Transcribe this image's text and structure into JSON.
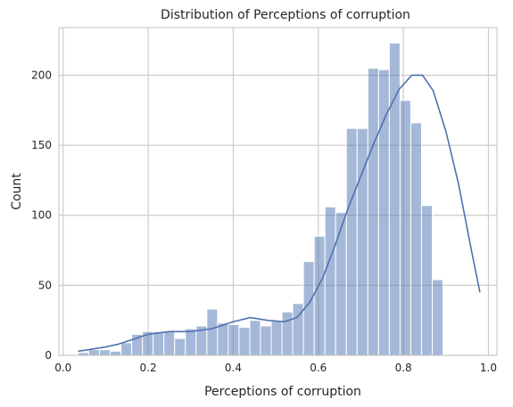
{
  "chart_data": {
    "type": "bar",
    "title": "Distribution of Perceptions of corruption",
    "xlabel": "Perceptions of corruption",
    "ylabel": "Count",
    "xlim": [
      -0.01,
      1.02
    ],
    "ylim": [
      0,
      234
    ],
    "grid": true,
    "xticks": [
      "0.0",
      "0.2",
      "0.4",
      "0.6",
      "0.8",
      "1.0"
    ],
    "yticks": [
      "0",
      "50",
      "100",
      "150",
      "200"
    ],
    "bin_start": 0.035,
    "bin_width": 0.02524,
    "counts": [
      2,
      4,
      4,
      3,
      9,
      15,
      17,
      17,
      17,
      12,
      19,
      21,
      33,
      23,
      22,
      20,
      25,
      21,
      25,
      31,
      37,
      67,
      85,
      106,
      102,
      162,
      162,
      205,
      204,
      223,
      182,
      166,
      107,
      54
    ],
    "kde": {
      "x": [
        0.035,
        0.06,
        0.1,
        0.13,
        0.16,
        0.2,
        0.25,
        0.3,
        0.35,
        0.4,
        0.44,
        0.48,
        0.52,
        0.55,
        0.58,
        0.61,
        0.64,
        0.67,
        0.7,
        0.73,
        0.76,
        0.79,
        0.82,
        0.845,
        0.87,
        0.9,
        0.93,
        0.96,
        0.98
      ],
      "y": [
        3,
        4,
        6,
        8,
        11,
        15,
        17,
        17,
        19,
        24,
        27,
        25,
        24,
        27,
        38,
        55,
        79,
        105,
        128,
        151,
        172,
        190,
        200,
        200,
        189,
        160,
        122,
        75,
        45
      ]
    },
    "colors": {
      "bar": "#4c72b0",
      "line": "#4c72b0",
      "grid": "#cccccc"
    }
  }
}
